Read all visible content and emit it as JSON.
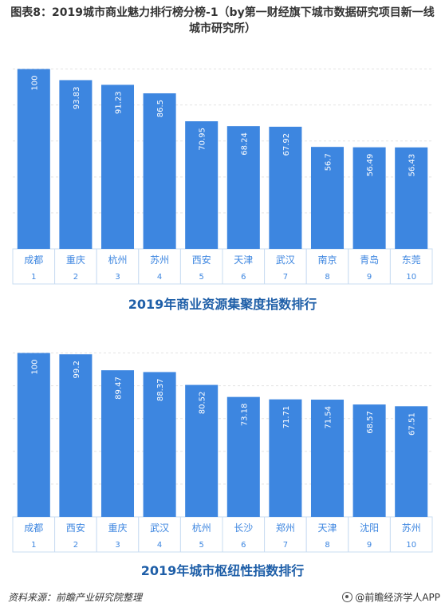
{
  "figure_title": "图表8：2019城市商业魅力排行榜分榜-1（by第一财经旗下城市数据研究项目新一线城市研究所）",
  "source": "资料来源：前瞻产业研究院整理",
  "brand": "@前瞻经济学人APP",
  "colors": {
    "bar": "#3d86e0",
    "axis_text": "#3d86e0",
    "title": "#1f5fa8",
    "cell_border": "#c9dcf2"
  },
  "chart_data": [
    {
      "type": "bar",
      "title": "2019年商业资源集聚度指数排行",
      "categories": [
        "成都",
        "重庆",
        "杭州",
        "苏州",
        "西安",
        "天津",
        "武汉",
        "南京",
        "青岛",
        "东莞"
      ],
      "ranks": [
        "1",
        "2",
        "3",
        "4",
        "5",
        "6",
        "7",
        "8",
        "9",
        "10"
      ],
      "values": [
        100,
        93.83,
        91.23,
        86.5,
        70.95,
        68.24,
        67.92,
        56.7,
        56.49,
        56.43
      ],
      "value_labels": [
        "100",
        "93.83",
        "91.23",
        "86.5",
        "70.95",
        "68.24",
        "67.92",
        "56.7",
        "56.49",
        "56.43"
      ],
      "ylim": [
        0,
        110
      ],
      "grid": true
    },
    {
      "type": "bar",
      "title": "2019年城市枢纽性指数排行",
      "categories": [
        "成都",
        "西安",
        "重庆",
        "武汉",
        "杭州",
        "长沙",
        "郑州",
        "天津",
        "沈阳",
        "苏州"
      ],
      "ranks": [
        "1",
        "2",
        "3",
        "4",
        "5",
        "6",
        "7",
        "8",
        "9",
        "10"
      ],
      "values": [
        100,
        99.2,
        89.47,
        88.37,
        80.52,
        73.18,
        71.71,
        71.54,
        68.57,
        67.51
      ],
      "value_labels": [
        "100",
        "99.2",
        "89.47",
        "88.37",
        "80.52",
        "73.18",
        "71.71",
        "71.54",
        "68.57",
        "67.51"
      ],
      "ylim": [
        0,
        110
      ],
      "grid": true
    }
  ]
}
